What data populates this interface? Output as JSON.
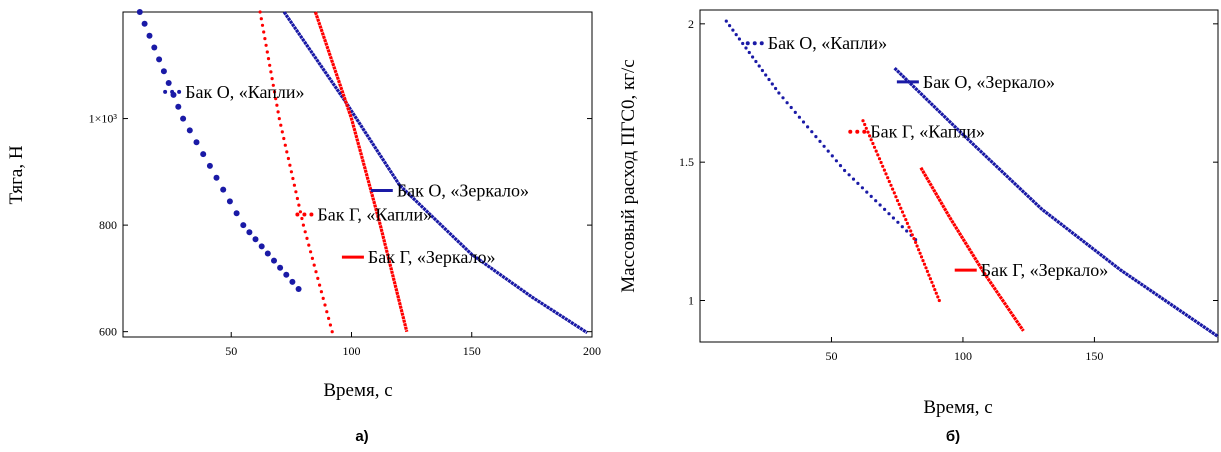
{
  "colors": {
    "blue": "#1a1aa6",
    "red": "#ff0000",
    "axis": "#000000"
  },
  "chart_data": [
    {
      "type": "scatter",
      "caption": "а)",
      "xlabel": "Время, с",
      "ylabel": "Тяга, Н",
      "xlim": [
        5,
        200
      ],
      "ylim": [
        590,
        1200
      ],
      "x_ticks": [
        {
          "value": 50,
          "label": "50"
        },
        {
          "value": 100,
          "label": "100"
        },
        {
          "value": 150,
          "label": "150"
        },
        {
          "value": 200,
          "label": "200"
        }
      ],
      "y_ticks": [
        {
          "value": 600,
          "label": "600"
        },
        {
          "value": 800,
          "label": "800"
        },
        {
          "value": 1000,
          "label": "1×10³"
        }
      ],
      "series": [
        {
          "name": "Бак О, «Капли»",
          "color": "blue",
          "style": "dots",
          "x": [
            12,
            30,
            55,
            78
          ],
          "y": [
            1200,
            1000,
            800,
            680
          ]
        },
        {
          "name": "Бак О, «Зеркало»",
          "color": "blue",
          "style": "line",
          "x": [
            72,
            97,
            120,
            150,
            175,
            198
          ],
          "y": [
            1200,
            1035,
            875,
            745,
            665,
            598
          ]
        },
        {
          "name": "Бак Г, «Капли»",
          "color": "red",
          "style": "dotted",
          "x": [
            62,
            70,
            80,
            92
          ],
          "y": [
            1200,
            1000,
            800,
            600
          ]
        },
        {
          "name": "Бак Г, «Зеркало»",
          "color": "red",
          "style": "line",
          "x": [
            85,
            100,
            112,
            123
          ],
          "y": [
            1200,
            1000,
            800,
            600
          ]
        }
      ],
      "annotations": [
        {
          "text": "Бак О, «Капли»",
          "x": 30,
          "y": 1050
        },
        {
          "text": "Бак О, «Зеркало»",
          "x": 118,
          "y": 865
        },
        {
          "text": "Бак Г, «Капли»",
          "x": 85,
          "y": 820
        },
        {
          "text": "Бак Г, «Зеркало»",
          "x": 106,
          "y": 740
        }
      ]
    },
    {
      "type": "scatter",
      "caption": "б)",
      "xlabel": "Время, с",
      "ylabel": "Массовый расход ПГС0, кг/с",
      "xlim": [
        0,
        197
      ],
      "ylim": [
        0.85,
        2.05
      ],
      "x_ticks": [
        {
          "value": 50,
          "label": "50"
        },
        {
          "value": 100,
          "label": "100"
        },
        {
          "value": 150,
          "label": "150"
        }
      ],
      "y_ticks": [
        {
          "value": 1,
          "label": "1"
        },
        {
          "value": 1.5,
          "label": "1.5"
        },
        {
          "value": 2,
          "label": "2"
        }
      ],
      "series": [
        {
          "name": "Бак О, «Капли»",
          "color": "blue",
          "style": "dotted",
          "x": [
            10,
            30,
            55,
            82
          ],
          "y": [
            2.01,
            1.75,
            1.47,
            1.22
          ]
        },
        {
          "name": "Бак О, «Зеркало»",
          "color": "blue",
          "style": "line",
          "x": [
            74,
            100,
            130,
            160,
            197
          ],
          "y": [
            1.84,
            1.6,
            1.33,
            1.11,
            0.87
          ]
        },
        {
          "name": "Бак Г, «Капли»",
          "color": "red",
          "style": "dotted",
          "x": [
            62,
            72,
            82,
            91
          ],
          "y": [
            1.65,
            1.43,
            1.21,
            1.0
          ]
        },
        {
          "name": "Бак Г, «Зеркало»",
          "color": "red",
          "style": "line",
          "x": [
            84,
            95,
            108,
            123
          ],
          "y": [
            1.48,
            1.3,
            1.1,
            0.89
          ]
        }
      ],
      "annotations": [
        {
          "text": "Бак О, «Капли»",
          "x": 25,
          "y": 1.93
        },
        {
          "text": "Бак О, «Зеркало»",
          "x": 84,
          "y": 1.79
        },
        {
          "text": "Бак Г, «Капли»",
          "x": 64,
          "y": 1.61
        },
        {
          "text": "Бак Г, «Зеркало»",
          "x": 106,
          "y": 1.11
        }
      ]
    }
  ]
}
